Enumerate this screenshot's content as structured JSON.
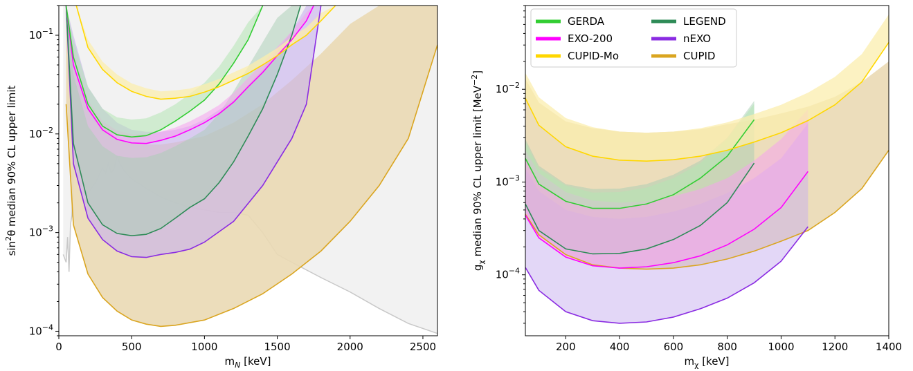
{
  "chart_data": [
    {
      "type": "area",
      "xlabel_main": "m",
      "xlabel_sub": "N",
      "xlabel_unit": " [keV]",
      "ylabel_pre": "sin",
      "ylabel_sup": "2",
      "ylabel_post": "θ median 90% CL upper limit",
      "xlim": [
        0,
        2600
      ],
      "ylim": [
        9e-05,
        0.2
      ],
      "log_y": true,
      "x_ticks": [
        0,
        500,
        1000,
        1500,
        2000,
        2500
      ],
      "x_tick_labels": [
        "0",
        "500",
        "1000",
        "1500",
        "2000",
        "2500"
      ],
      "y_ticks": [
        0.0001,
        0.001,
        0.01,
        0.1
      ],
      "y_tick_labels": [
        {
          "base": "10",
          "exp": "−4"
        },
        {
          "base": "10",
          "exp": "−3"
        },
        {
          "base": "10",
          "exp": "−2"
        },
        {
          "base": "10",
          "exp": "−1"
        }
      ],
      "excluded_region": {
        "color": "#f2f2f2",
        "x": [
          30,
          50,
          60,
          70,
          80,
          90,
          100,
          150,
          200,
          250,
          300,
          320,
          340,
          360,
          380,
          400,
          420,
          450,
          500,
          600,
          700,
          800,
          900,
          1000,
          1100,
          1200,
          1300,
          1400,
          1500,
          1600,
          1800,
          2000,
          2200,
          2400,
          2600
        ],
        "y": [
          0.0006,
          0.0005,
          0.0009,
          0.0004,
          0.0012,
          0.0015,
          0.005,
          0.003,
          0.0025,
          0.0032,
          0.0045,
          0.004,
          0.005,
          0.004,
          0.0045,
          0.006,
          0.005,
          0.0042,
          0.0035,
          0.0028,
          0.0023,
          0.002,
          0.0018,
          0.0017,
          0.0016,
          0.0016,
          0.0015,
          0.001,
          0.0006,
          0.0005,
          0.00035,
          0.00025,
          0.00017,
          0.00012,
          9.5e-05
        ]
      },
      "series": [
        {
          "name": "CUPID",
          "color": "#daa520",
          "fill": "#ead9b4",
          "fill_opacity": 0.9,
          "x": [
            50,
            100,
            200,
            300,
            400,
            500,
            600,
            700,
            800,
            1000,
            1200,
            1400,
            1600,
            1800,
            2000,
            2200,
            2400,
            2600
          ],
          "mid": [
            0.02,
            0.0012,
            0.00038,
            0.00022,
            0.00016,
            0.00013,
            0.000118,
            0.000112,
            0.000115,
            0.00013,
            0.00017,
            0.00024,
            0.00038,
            0.00065,
            0.0013,
            0.003,
            0.009,
            0.08
          ],
          "upper": [
            0.2,
            0.05,
            0.02,
            0.012,
            0.009,
            0.008,
            0.0078,
            0.0078,
            0.0082,
            0.0095,
            0.013,
            0.02,
            0.035,
            0.065,
            0.13,
            0.2,
            0.2,
            0.2
          ]
        },
        {
          "name": "nEXO",
          "color": "#8a2be2",
          "fill": "#c8b0ef",
          "fill_opacity": 0.6,
          "x": [
            50,
            100,
            200,
            300,
            400,
            500,
            600,
            700,
            800,
            900,
            1000,
            1200,
            1400,
            1600,
            1700,
            1800
          ],
          "mid": [
            0.2,
            0.005,
            0.0014,
            0.00085,
            0.00065,
            0.00057,
            0.00056,
            0.0006,
            0.00063,
            0.00068,
            0.0008,
            0.0013,
            0.003,
            0.009,
            0.02,
            0.2
          ],
          "upper": [
            0.2,
            0.1,
            0.03,
            0.018,
            0.013,
            0.011,
            0.0105,
            0.0105,
            0.011,
            0.012,
            0.014,
            0.022,
            0.045,
            0.11,
            0.2,
            0.2
          ]
        },
        {
          "name": "LEGEND",
          "color": "#2e8b57",
          "fill": "#a7cdb3",
          "fill_opacity": 0.5,
          "x": [
            50,
            100,
            200,
            300,
            400,
            500,
            600,
            700,
            800,
            900,
            1000,
            1100,
            1200,
            1300,
            1400,
            1500,
            1600,
            1660
          ],
          "mid": [
            0.2,
            0.008,
            0.002,
            0.0012,
            0.00098,
            0.00093,
            0.00096,
            0.0011,
            0.0014,
            0.0018,
            0.0022,
            0.0032,
            0.0052,
            0.0095,
            0.018,
            0.04,
            0.1,
            0.2
          ],
          "upper": [
            0.2,
            0.04,
            0.012,
            0.0075,
            0.006,
            0.0057,
            0.0058,
            0.0064,
            0.0075,
            0.009,
            0.011,
            0.016,
            0.027,
            0.048,
            0.085,
            0.15,
            0.2,
            0.2
          ]
        },
        {
          "name": "EXO-200",
          "color": "#ff00ff",
          "fill": "#f5a3ef",
          "fill_opacity": 0.55,
          "x": [
            50,
            100,
            200,
            300,
            400,
            500,
            600,
            700,
            800,
            900,
            1000,
            1100,
            1200,
            1300,
            1400,
            1500,
            1600,
            1700,
            1750
          ],
          "mid": [
            0.2,
            0.05,
            0.018,
            0.011,
            0.0088,
            0.0081,
            0.008,
            0.0086,
            0.0095,
            0.011,
            0.013,
            0.016,
            0.021,
            0.03,
            0.042,
            0.062,
            0.09,
            0.14,
            0.2
          ],
          "upper": [
            0.2,
            0.07,
            0.022,
            0.0135,
            0.0108,
            0.0099,
            0.0098,
            0.0105,
            0.0116,
            0.0134,
            0.016,
            0.0196,
            0.026,
            0.037,
            0.052,
            0.076,
            0.11,
            0.17,
            0.2
          ]
        },
        {
          "name": "GERDA",
          "color": "#32cd32",
          "fill": "#b4e5b4",
          "fill_opacity": 0.55,
          "x": [
            50,
            100,
            200,
            300,
            400,
            500,
            600,
            700,
            800,
            900,
            1000,
            1100,
            1200,
            1300,
            1400
          ],
          "mid": [
            0.2,
            0.06,
            0.02,
            0.012,
            0.0098,
            0.0093,
            0.0096,
            0.011,
            0.0135,
            0.017,
            0.022,
            0.032,
            0.052,
            0.09,
            0.2
          ],
          "upper": [
            0.2,
            0.09,
            0.03,
            0.018,
            0.0147,
            0.014,
            0.0144,
            0.0165,
            0.02,
            0.0255,
            0.033,
            0.048,
            0.078,
            0.135,
            0.2
          ]
        },
        {
          "name": "CUPID-Mo",
          "color": "#ffd700",
          "fill": "#fbedad",
          "fill_opacity": 0.75,
          "x": [
            120,
            200,
            300,
            400,
            500,
            600,
            700,
            800,
            900,
            1000,
            1100,
            1200,
            1300,
            1400,
            1500,
            1600,
            1700,
            1800,
            1900
          ],
          "mid": [
            0.2,
            0.075,
            0.045,
            0.033,
            0.027,
            0.024,
            0.0225,
            0.023,
            0.024,
            0.0265,
            0.03,
            0.035,
            0.041,
            0.05,
            0.062,
            0.08,
            0.1,
            0.14,
            0.2
          ],
          "upper": [
            0.2,
            0.09,
            0.054,
            0.04,
            0.0325,
            0.029,
            0.027,
            0.0276,
            0.0288,
            0.0318,
            0.036,
            0.042,
            0.049,
            0.06,
            0.074,
            0.096,
            0.12,
            0.168,
            0.2
          ]
        }
      ]
    },
    {
      "type": "area",
      "xlabel_main": "m",
      "xlabel_sub": "χ",
      "xlabel_unit": " [keV]",
      "ylabel_pre": "g",
      "ylabel_sub": "χ",
      "ylabel_post": " median 90% CL upper limit [MeV",
      "ylabel_sup": "−2",
      "ylabel_end": "]",
      "xlim": [
        50,
        1400
      ],
      "ylim": [
        2.2e-05,
        0.08
      ],
      "log_y": true,
      "x_ticks": [
        200,
        400,
        600,
        800,
        1000,
        1200,
        1400
      ],
      "x_tick_labels": [
        "200",
        "400",
        "600",
        "800",
        "1000",
        "1200",
        "1400"
      ],
      "y_ticks": [
        0.0001,
        0.001,
        0.01
      ],
      "y_tick_labels": [
        {
          "base": "10",
          "exp": "−4"
        },
        {
          "base": "10",
          "exp": "−3"
        },
        {
          "base": "10",
          "exp": "−2"
        }
      ],
      "legend": {
        "placement": "top-left",
        "columns": [
          [
            "GERDA",
            "EXO-200",
            "CUPID-Mo"
          ],
          [
            "LEGEND",
            "nEXO",
            "CUPID"
          ]
        ]
      },
      "series": [
        {
          "name": "CUPID",
          "color": "#daa520",
          "fill": "#ead9b4",
          "fill_opacity": 0.9,
          "x": [
            50,
            100,
            200,
            300,
            400,
            500,
            600,
            700,
            800,
            900,
            1000,
            1100,
            1200,
            1300,
            1400
          ],
          "mid": [
            0.00045,
            0.00027,
            0.000165,
            0.000128,
            0.000118,
            0.000115,
            0.000118,
            0.000128,
            0.000148,
            0.00018,
            0.00023,
            0.0003,
            0.00047,
            0.00085,
            0.0022
          ],
          "upper": [
            0.013,
            0.0072,
            0.0045,
            0.0038,
            0.0035,
            0.0034,
            0.0035,
            0.0037,
            0.0042,
            0.0047,
            0.0055,
            0.0065,
            0.0083,
            0.012,
            0.02
          ]
        },
        {
          "name": "nEXO",
          "color": "#8a2be2",
          "fill": "#c8b0ef",
          "fill_opacity": 0.5,
          "x": [
            50,
            100,
            200,
            300,
            400,
            500,
            600,
            700,
            800,
            900,
            1000,
            1100
          ],
          "mid": [
            0.00012,
            6.8e-05,
            4e-05,
            3.2e-05,
            3e-05,
            3.1e-05,
            3.5e-05,
            4.3e-05,
            5.6e-05,
            8.2e-05,
            0.00014,
            0.00033
          ],
          "upper": [
            0.0014,
            0.0008,
            0.0005,
            0.00042,
            0.0004,
            0.00042,
            0.00048,
            0.00058,
            0.00076,
            0.0011,
            0.0018,
            0.0043
          ]
        },
        {
          "name": "LEGEND",
          "color": "#2e8b57",
          "fill": "#a7cdb3",
          "fill_opacity": 0.5,
          "x": [
            50,
            100,
            200,
            300,
            400,
            500,
            600,
            700,
            800,
            900
          ],
          "mid": [
            0.00058,
            0.0003,
            0.00019,
            0.000168,
            0.00017,
            0.00019,
            0.00024,
            0.00034,
            0.0006,
            0.0016
          ],
          "upper": [
            0.0029,
            0.0015,
            0.00095,
            0.00084,
            0.00085,
            0.00095,
            0.0012,
            0.0017,
            0.003,
            0.0075
          ]
        },
        {
          "name": "EXO-200",
          "color": "#ff00ff",
          "fill": "#f5a3ef",
          "fill_opacity": 0.55,
          "x": [
            50,
            100,
            200,
            300,
            400,
            500,
            600,
            700,
            800,
            900,
            1000,
            1100
          ],
          "mid": [
            0.00044,
            0.00025,
            0.000155,
            0.000125,
            0.000118,
            0.000122,
            0.000135,
            0.00016,
            0.00021,
            0.00031,
            0.00053,
            0.0013
          ],
          "upper": [
            0.0022,
            0.00125,
            0.00078,
            0.00063,
            0.0006,
            0.00062,
            0.0007,
            0.00084,
            0.0011,
            0.0017,
            0.0029,
            0.0061
          ]
        },
        {
          "name": "GERDA",
          "color": "#32cd32",
          "fill": "#b4e5b4",
          "fill_opacity": 0.55,
          "x": [
            50,
            100,
            200,
            300,
            400,
            500,
            600,
            700,
            800,
            900
          ],
          "mid": [
            0.0018,
            0.00095,
            0.00062,
            0.00052,
            0.00052,
            0.00058,
            0.00073,
            0.0011,
            0.0019,
            0.0047
          ],
          "upper": [
            0.0027,
            0.0014,
            0.00092,
            0.00077,
            0.00078,
            0.00087,
            0.0011,
            0.0016,
            0.0029,
            0.007
          ]
        },
        {
          "name": "CUPID-Mo",
          "color": "#ffd700",
          "fill": "#fbedad",
          "fill_opacity": 0.75,
          "x": [
            50,
            100,
            200,
            300,
            400,
            500,
            600,
            700,
            800,
            900,
            1000,
            1100,
            1200,
            1300,
            1400
          ],
          "mid": [
            0.008,
            0.0041,
            0.0024,
            0.0019,
            0.00172,
            0.00168,
            0.00174,
            0.0019,
            0.0022,
            0.0027,
            0.0034,
            0.0046,
            0.0068,
            0.012,
            0.032
          ],
          "upper": [
            0.015,
            0.0082,
            0.0049,
            0.0039,
            0.0035,
            0.0034,
            0.0035,
            0.0038,
            0.0044,
            0.0054,
            0.0068,
            0.0092,
            0.0136,
            0.024,
            0.064
          ]
        }
      ]
    }
  ]
}
